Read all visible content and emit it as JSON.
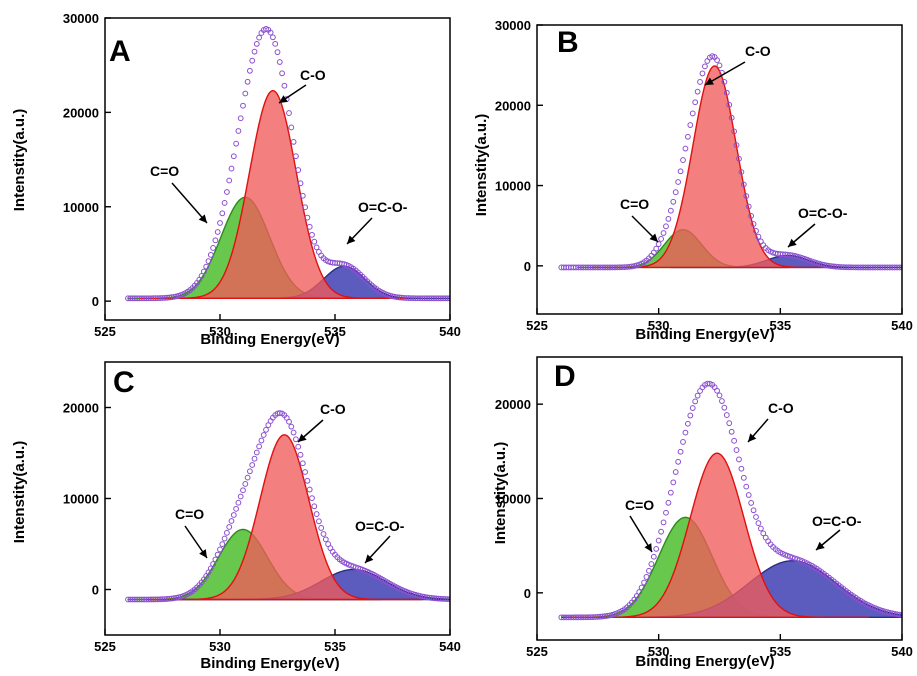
{
  "colors": {
    "envelope": "#8a4fd0",
    "c_eq_o": "#58c23a",
    "c_o": "#ef5b5b",
    "o_eq_c_o": "#4a4ab8",
    "c_eq_o_line": "#2e8a1e",
    "c_o_line": "#e01010",
    "o_eq_c_o_line": "#2b2b8a"
  },
  "chart_data": [
    {
      "panel": "A",
      "type": "area",
      "xlabel": "Binding Energy(eV)",
      "ylabel": "Intenstity(a.u.)",
      "xlim": [
        525,
        540
      ],
      "ylim": [
        -2000,
        30000
      ],
      "xticks": [
        525,
        530,
        535,
        540
      ],
      "yticks": [
        0,
        10000,
        20000,
        30000
      ],
      "baseline": 300,
      "envelope_range": [
        526,
        540
      ],
      "components": [
        {
          "name": "C=O",
          "center": 531.1,
          "height": 10700,
          "fwhm": 2.5
        },
        {
          "name": "C-O",
          "center": 532.3,
          "height": 22000,
          "fwhm": 2.4
        },
        {
          "name": "O=C-O-",
          "center": 535.4,
          "height": 3400,
          "fwhm": 2.1
        }
      ],
      "annotations": [
        "C=O",
        "C-O",
        "O=C-O-"
      ]
    },
    {
      "panel": "B",
      "type": "area",
      "xlabel": "Binding Energy(eV)",
      "ylabel": "Intenstity(a.u.)",
      "xlim": [
        525,
        540
      ],
      "ylim": [
        -6000,
        30000
      ],
      "xticks": [
        525,
        530,
        535,
        540
      ],
      "yticks": [
        0,
        10000,
        20000,
        30000
      ],
      "baseline": -200,
      "envelope_range": [
        526,
        540
      ],
      "components": [
        {
          "name": "C=O",
          "center": 531.0,
          "height": 4700,
          "fwhm": 1.8
        },
        {
          "name": "C-O",
          "center": 532.3,
          "height": 25100,
          "fwhm": 2.1
        },
        {
          "name": "O=C-O-",
          "center": 535.3,
          "height": 1500,
          "fwhm": 2.0
        }
      ],
      "annotations": [
        "C=O",
        "C-O",
        "O=C-O-"
      ]
    },
    {
      "panel": "C",
      "type": "area",
      "xlabel": "Binding Energy(eV)",
      "ylabel": "Intenstity(a.u.)",
      "xlim": [
        525,
        540
      ],
      "ylim": [
        -5000,
        25000
      ],
      "xticks": [
        525,
        530,
        535,
        540
      ],
      "yticks": [
        0,
        10000,
        20000
      ],
      "baseline": -1100,
      "envelope_range": [
        526,
        540
      ],
      "components": [
        {
          "name": "C=O",
          "center": 531.0,
          "height": 7700,
          "fwhm": 2.5
        },
        {
          "name": "C-O",
          "center": 532.8,
          "height": 18100,
          "fwhm": 2.5
        },
        {
          "name": "O=C-O-",
          "center": 535.8,
          "height": 3300,
          "fwhm": 3.3
        }
      ],
      "annotations": [
        "C=O",
        "C-O",
        "O=C-O-"
      ]
    },
    {
      "panel": "D",
      "type": "area",
      "xlabel": "Binding Energy(eV)",
      "ylabel": "Intenstity(a.u.)",
      "xlim": [
        525,
        540
      ],
      "ylim": [
        -5000,
        25000
      ],
      "xticks": [
        525,
        530,
        535,
        540
      ],
      "yticks": [
        0,
        10000,
        20000
      ],
      "baseline": -2600,
      "envelope_range": [
        526,
        540
      ],
      "components": [
        {
          "name": "C=O",
          "center": 531.1,
          "height": 10600,
          "fwhm": 2.6
        },
        {
          "name": "C-O",
          "center": 532.4,
          "height": 17400,
          "fwhm": 2.6
        },
        {
          "name": "O=C-O-",
          "center": 535.5,
          "height": 6000,
          "fwhm": 4.2
        }
      ],
      "annotations": [
        "C=O",
        "C-O",
        "O=C-O-"
      ]
    }
  ]
}
